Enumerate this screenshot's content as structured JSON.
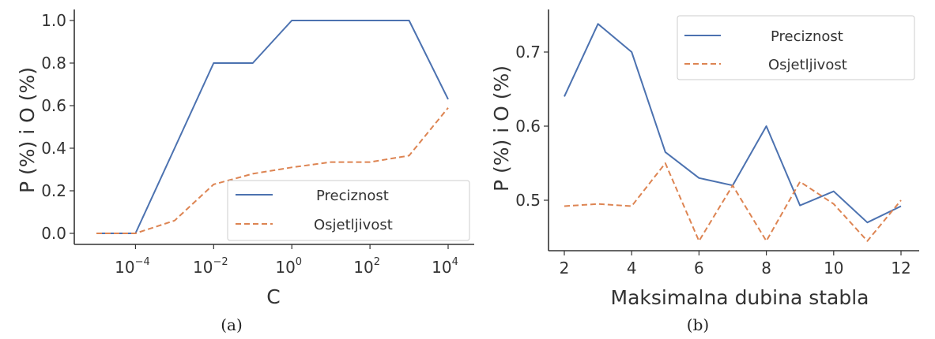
{
  "chart_data": [
    {
      "type": "line",
      "caption": "(a)",
      "xlabel": "C",
      "ylabel": "P (%) i O (%)",
      "xscale": "log",
      "xlim": [
        1e-05,
        10000
      ],
      "ylim": [
        0.0,
        1.0
      ],
      "x": [
        1e-05,
        0.0001,
        0.001,
        0.01,
        0.1,
        1,
        10,
        100,
        1000,
        10000
      ],
      "xticks": [
        {
          "value": 0.0001,
          "base": "10",
          "exp": "−4"
        },
        {
          "value": 0.01,
          "base": "10",
          "exp": "−2"
        },
        {
          "value": 1,
          "base": "10",
          "exp": "0"
        },
        {
          "value": 100,
          "base": "10",
          "exp": "2"
        },
        {
          "value": 10000,
          "base": "10",
          "exp": "4"
        }
      ],
      "yticks": [
        "0.0",
        "0.2",
        "0.4",
        "0.6",
        "0.8",
        "1.0"
      ],
      "series": [
        {
          "name": "Preciznost",
          "color": "#4c72b0",
          "style": "solid",
          "values": [
            0.0,
            0.0,
            0.4,
            0.8,
            0.8,
            1.0,
            1.0,
            1.0,
            1.0,
            0.63
          ]
        },
        {
          "name": "Osjetljivost",
          "color": "#dd8452",
          "style": "dashed",
          "values": [
            0.0,
            0.0,
            0.06,
            0.23,
            0.28,
            0.31,
            0.335,
            0.335,
            0.365,
            0.59
          ]
        }
      ],
      "legend": "lower-right",
      "grid": false
    },
    {
      "type": "line",
      "caption": "(b)",
      "xlabel": "Maksimalna dubina stabla",
      "ylabel": "P (%) i O (%)",
      "xlim": [
        1.8,
        12.2
      ],
      "ylim": [
        0.43,
        0.76
      ],
      "x": [
        2,
        3,
        4,
        5,
        6,
        7,
        8,
        9,
        10,
        11,
        12
      ],
      "xticks": [
        "2",
        "4",
        "6",
        "8",
        "10",
        "12"
      ],
      "yticks": [
        "0.5",
        "0.6",
        "0.7"
      ],
      "series": [
        {
          "name": "Preciznost",
          "color": "#4c72b0",
          "style": "solid",
          "values": [
            0.64,
            0.738,
            0.7,
            0.565,
            0.53,
            0.52,
            0.6,
            0.493,
            0.512,
            0.47,
            0.492
          ]
        },
        {
          "name": "Osjetljivost",
          "color": "#dd8452",
          "style": "dashed",
          "values": [
            0.492,
            0.495,
            0.492,
            0.55,
            0.445,
            0.52,
            0.445,
            0.525,
            0.495,
            0.445,
            0.5
          ]
        }
      ],
      "legend": "top-right",
      "grid": false
    }
  ]
}
